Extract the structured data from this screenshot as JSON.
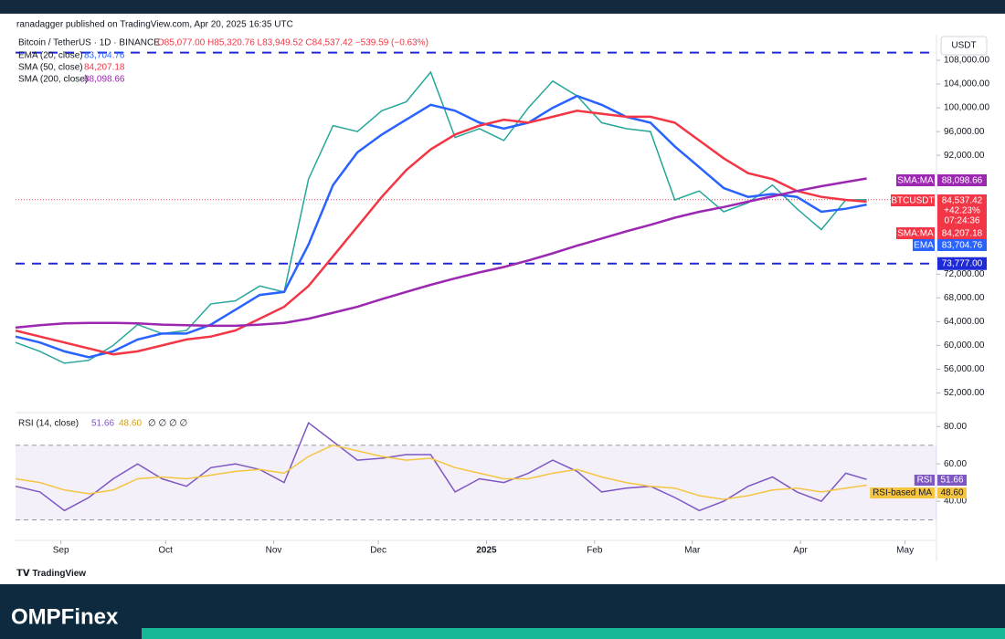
{
  "header": {
    "published": "ranadagger published on TradingView.com, Apr 20, 2025 16:35 UTC",
    "currency": "USDT",
    "brand": "TradingView"
  },
  "footer": {
    "logo": "OMPFinex"
  },
  "chart_data": [
    {
      "type": "line",
      "legend_ohlc": "O85,077.00 H85,320.76 L83,949.52 C84,537.42 −539.59 (−0.63%)",
      "x": [
        "2024-08-19",
        "2024-08-26",
        "2024-09-02",
        "2024-09-09",
        "2024-09-16",
        "2024-09-23",
        "2024-09-30",
        "2024-10-07",
        "2024-10-14",
        "2024-10-21",
        "2024-10-28",
        "2024-11-04",
        "2024-11-11",
        "2024-11-18",
        "2024-11-25",
        "2024-12-02",
        "2024-12-09",
        "2024-12-16",
        "2024-12-23",
        "2024-12-30",
        "2025-01-06",
        "2025-01-13",
        "2025-01-20",
        "2025-01-27",
        "2025-02-03",
        "2025-02-10",
        "2025-02-17",
        "2025-02-24",
        "2025-03-03",
        "2025-03-10",
        "2025-03-17",
        "2025-03-24",
        "2025-03-31",
        "2025-04-07",
        "2025-04-14",
        "2025-04-20"
      ],
      "xlim": [
        "2024-08-19",
        "2025-05-10"
      ],
      "ylim": [
        49000,
        112000
      ],
      "yticks": [
        {
          "value": 108000,
          "label": "108,000.00"
        },
        {
          "value": 104000,
          "label": "104,000.00"
        },
        {
          "value": 100000,
          "label": "100,000.00"
        },
        {
          "value": 96000,
          "label": "96,000.00"
        },
        {
          "value": 92000,
          "label": "92,000.00"
        },
        {
          "value": 72000,
          "label": "72,000.00"
        },
        {
          "value": 68000,
          "label": "68,000.00"
        },
        {
          "value": 64000,
          "label": "64,000.00"
        },
        {
          "value": 60000,
          "label": "60,000.00"
        },
        {
          "value": 56000,
          "label": "56,000.00"
        },
        {
          "value": 52000,
          "label": "52,000.00"
        }
      ],
      "grid": false,
      "resistance": 109300,
      "support": {
        "value": 73777,
        "label": "73,777.00"
      },
      "series": [
        {
          "name": "Bitcoin / TetherUS · 1D · BINANCE",
          "color": "#26a69a",
          "tag": "BTCUSDT",
          "tag_color": "#f23645",
          "last_label": "84,537.42",
          "change_label": "+42.23%",
          "countdown": "07:24:36",
          "values": [
            60500,
            59000,
            57000,
            57500,
            60000,
            63500,
            62000,
            62500,
            67000,
            67500,
            70000,
            69000,
            88000,
            97000,
            96000,
            99500,
            101000,
            106000,
            95000,
            96500,
            94500,
            100000,
            104500,
            102000,
            97500,
            96500,
            96000,
            84500,
            86000,
            82500,
            84000,
            87000,
            83000,
            79500,
            84500,
            84537.42
          ]
        },
        {
          "name": "EMA (20, close)",
          "color": "#2962ff",
          "tag": "EMA",
          "last_label": "83,704.76",
          "values": [
            61500,
            60500,
            59000,
            58000,
            59000,
            61000,
            62000,
            62000,
            63500,
            66000,
            68500,
            69000,
            77000,
            87000,
            92500,
            95500,
            98000,
            100500,
            99500,
            97500,
            96500,
            97500,
            100000,
            102000,
            100500,
            98500,
            97500,
            93500,
            90000,
            86500,
            85000,
            85500,
            85000,
            82500,
            83000,
            83704.76
          ]
        },
        {
          "name": "SMA (50, close)",
          "color": "#f23645",
          "tag": "SMA:MA",
          "last_label": "84,207.18",
          "values": [
            62500,
            61500,
            60500,
            59500,
            58500,
            59000,
            60000,
            61000,
            61500,
            62500,
            64500,
            66500,
            70000,
            75000,
            80000,
            85000,
            89500,
            93000,
            95500,
            97000,
            98000,
            97500,
            98500,
            99500,
            99000,
            98500,
            98500,
            97500,
            94500,
            91500,
            89000,
            88000,
            86000,
            85000,
            84500,
            84207.18
          ]
        },
        {
          "name": "SMA (200, close)",
          "color": "#9c27b0",
          "tag": "SMA:MA",
          "last_label": "88,098.66",
          "values": [
            63000,
            63400,
            63700,
            63800,
            63800,
            63700,
            63500,
            63400,
            63300,
            63300,
            63500,
            63800,
            64500,
            65500,
            66500,
            67800,
            69000,
            70200,
            71300,
            72300,
            73200,
            74300,
            75500,
            76800,
            78000,
            79200,
            80300,
            81500,
            82500,
            83300,
            84200,
            85100,
            86000,
            86800,
            87500,
            88098.66
          ]
        }
      ]
    },
    {
      "type": "line",
      "title": "RSI (14, close)",
      "legend_extra": "∅ ∅ ∅ ∅",
      "x": [
        "2024-08-19",
        "2024-08-26",
        "2024-09-02",
        "2024-09-09",
        "2024-09-16",
        "2024-09-23",
        "2024-09-30",
        "2024-10-07",
        "2024-10-14",
        "2024-10-21",
        "2024-10-28",
        "2024-11-04",
        "2024-11-11",
        "2024-11-18",
        "2024-11-25",
        "2024-12-02",
        "2024-12-09",
        "2024-12-16",
        "2024-12-23",
        "2024-12-30",
        "2025-01-06",
        "2025-01-13",
        "2025-01-20",
        "2025-01-27",
        "2025-02-03",
        "2025-02-10",
        "2025-02-17",
        "2025-02-24",
        "2025-03-03",
        "2025-03-10",
        "2025-03-17",
        "2025-03-24",
        "2025-03-31",
        "2025-04-07",
        "2025-04-14",
        "2025-04-20"
      ],
      "xlim": [
        "2024-08-19",
        "2025-05-10"
      ],
      "xticks": [
        {
          "value": "2024-09-01",
          "label": "Sep"
        },
        {
          "value": "2024-10-01",
          "label": "Oct"
        },
        {
          "value": "2024-11-01",
          "label": "Nov"
        },
        {
          "value": "2024-12-01",
          "label": "Dec"
        },
        {
          "value": "2025-01-01",
          "label": "2025"
        },
        {
          "value": "2025-02-01",
          "label": "Feb"
        },
        {
          "value": "2025-03-01",
          "label": "Mar"
        },
        {
          "value": "2025-04-01",
          "label": "Apr"
        },
        {
          "value": "2025-05-01",
          "label": "May"
        }
      ],
      "ylim": [
        20,
        86
      ],
      "yticks": [
        {
          "value": 80,
          "label": "80.00"
        },
        {
          "value": 60,
          "label": "60.00"
        },
        {
          "value": 40,
          "label": "40.00"
        }
      ],
      "band": [
        30,
        70
      ],
      "series": [
        {
          "name": "RSI",
          "color": "#7e57c2",
          "last_label": "51.66",
          "values": [
            48,
            45,
            35,
            42,
            52,
            60,
            52,
            48,
            58,
            60,
            57,
            50,
            82,
            72,
            62,
            63,
            65,
            65,
            45,
            52,
            50,
            55,
            62,
            56,
            45,
            47,
            48,
            42,
            35,
            40,
            48,
            53,
            45,
            40,
            55,
            51.66
          ]
        },
        {
          "name": "RSI-based MA",
          "color": "#f5c542",
          "last_label": "48.60",
          "values": [
            52,
            50,
            46,
            44,
            46,
            52,
            53,
            52,
            54,
            56,
            57,
            55,
            64,
            70,
            67,
            64,
            62,
            63,
            58,
            55,
            52,
            52,
            55,
            57,
            53,
            50,
            48,
            47,
            43,
            41,
            43,
            46,
            47,
            45,
            47,
            48.6
          ]
        }
      ]
    }
  ]
}
